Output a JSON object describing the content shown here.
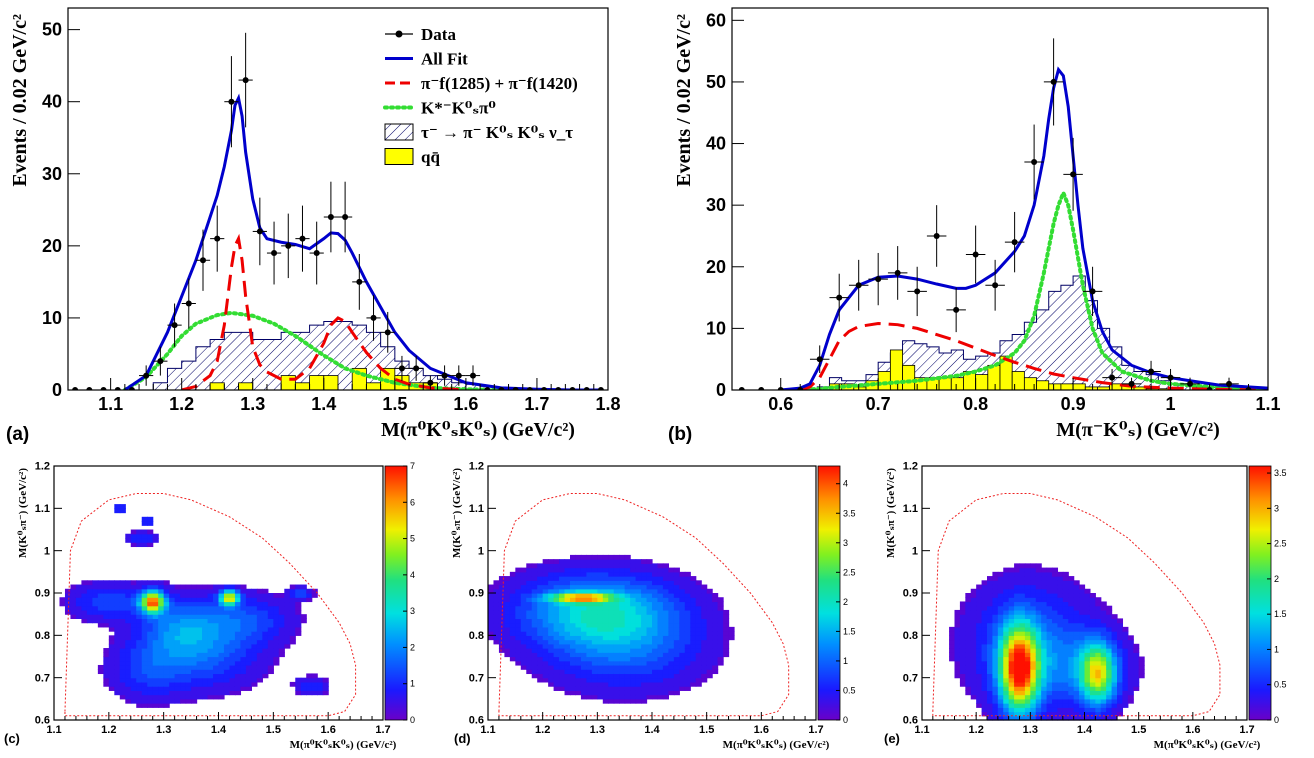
{
  "chart_data": [
    {
      "id": "a",
      "panel_label": "(a)",
      "type": "histogram-fit",
      "xlabel": "M(π⁰K⁰ₛK⁰ₛ) (GeV/c²)",
      "ylabel": "Events / 0.02 GeV/c²",
      "xlim": [
        1.04,
        1.8
      ],
      "ylim": [
        0,
        53
      ],
      "xticks": [
        1.1,
        1.2,
        1.3,
        1.4,
        1.5,
        1.6,
        1.7,
        1.8
      ],
      "yticks": [
        0,
        10,
        20,
        30,
        40,
        50
      ],
      "legend": {
        "placement": "top-right",
        "entries": [
          {
            "key": "data",
            "label": "Data"
          },
          {
            "key": "allfit",
            "label": "All Fit"
          },
          {
            "key": "sig",
            "label": "π⁻f(1285) + π⁻f(1420)"
          },
          {
            "key": "kstar",
            "label": "K*⁻K⁰ₛπ⁰"
          },
          {
            "key": "tau",
            "label": "τ⁻ → π⁻ K⁰ₛ K⁰ₛ ν_τ"
          },
          {
            "key": "qq",
            "label": "qq̄"
          }
        ]
      },
      "colors": {
        "data": "#000000",
        "allfit": "#0000cc",
        "sig": "#ee0000",
        "kstar": "#33dd33",
        "tau": "#000066",
        "qq": "#ffff00"
      },
      "data": {
        "x": [
          1.05,
          1.07,
          1.09,
          1.11,
          1.13,
          1.15,
          1.17,
          1.19,
          1.21,
          1.23,
          1.25,
          1.27,
          1.29,
          1.31,
          1.33,
          1.35,
          1.37,
          1.39,
          1.41,
          1.43,
          1.45,
          1.47,
          1.49,
          1.51,
          1.53,
          1.55,
          1.57,
          1.59,
          1.61,
          1.63,
          1.65,
          1.67,
          1.69,
          1.71,
          1.73,
          1.75,
          1.77,
          1.79
        ],
        "y": [
          0,
          0,
          0,
          0,
          0,
          2,
          4,
          9,
          12,
          18,
          21,
          40,
          43,
          22,
          19,
          20,
          21,
          19,
          24,
          24,
          15,
          10,
          8,
          3,
          3,
          1,
          2,
          2,
          2,
          0,
          0,
          0,
          0,
          0,
          0,
          0,
          0,
          0
        ]
      },
      "all_fit": {
        "x": [
          1.12,
          1.15,
          1.18,
          1.2,
          1.22,
          1.24,
          1.25,
          1.26,
          1.27,
          1.275,
          1.28,
          1.285,
          1.29,
          1.3,
          1.31,
          1.32,
          1.34,
          1.36,
          1.38,
          1.4,
          1.41,
          1.42,
          1.43,
          1.44,
          1.46,
          1.48,
          1.5,
          1.52,
          1.55,
          1.6,
          1.65,
          1.7,
          1.75,
          1.79
        ],
        "y": [
          0,
          2,
          8,
          13,
          18,
          24,
          27,
          31,
          36,
          39.5,
          40.5,
          38,
          33,
          26.5,
          22.5,
          21,
          20.5,
          20.2,
          19.6,
          21,
          21.8,
          21.7,
          20.8,
          19,
          15,
          11.5,
          8,
          5.5,
          3,
          1,
          0.3,
          0.1,
          0,
          0
        ]
      },
      "signal_fit": {
        "x": [
          1.2,
          1.22,
          1.24,
          1.25,
          1.26,
          1.27,
          1.275,
          1.28,
          1.285,
          1.29,
          1.3,
          1.31,
          1.32,
          1.34,
          1.36,
          1.38,
          1.4,
          1.41,
          1.42,
          1.43,
          1.44,
          1.46,
          1.48,
          1.5,
          1.52,
          1.55,
          1.6
        ],
        "y": [
          0,
          0.5,
          2,
          4,
          9,
          17,
          20,
          21,
          18,
          13,
          6,
          3.5,
          2.5,
          1.5,
          1.5,
          3,
          6.5,
          9,
          10,
          9.5,
          8,
          5.2,
          3,
          1.5,
          0.8,
          0.3,
          0
        ]
      },
      "kstar_fit": {
        "x": [
          1.12,
          1.15,
          1.18,
          1.2,
          1.22,
          1.25,
          1.27,
          1.3,
          1.33,
          1.36,
          1.4,
          1.43,
          1.46,
          1.5,
          1.55,
          1.6,
          1.65,
          1.7
        ],
        "y": [
          0,
          1.8,
          5,
          7.5,
          9.2,
          10.4,
          10.7,
          10.3,
          9.2,
          7.5,
          4.8,
          3,
          2,
          1,
          0.3,
          0.1,
          0,
          0
        ]
      },
      "tau_hist": {
        "edges_start": 1.04,
        "width": 0.02,
        "values": [
          0,
          0,
          0,
          0,
          0,
          0,
          1,
          3,
          4,
          6,
          7,
          8,
          8,
          7,
          7,
          8,
          8,
          9,
          9.5,
          9.5,
          9,
          8,
          6,
          4,
          3,
          2,
          1.5,
          1,
          0.8,
          0.5,
          0.3,
          0,
          0,
          0,
          0,
          0,
          0,
          0
        ]
      },
      "qq_hist": {
        "edges_start": 1.04,
        "width": 0.02,
        "values": [
          0,
          0,
          0,
          0,
          0,
          0,
          0,
          0,
          0,
          0,
          1,
          0,
          1,
          0,
          0,
          2,
          1,
          2,
          2,
          0,
          3,
          1,
          3,
          2,
          1,
          1,
          0,
          0,
          0,
          0,
          0,
          0,
          0,
          0,
          0,
          0,
          0,
          0
        ]
      }
    },
    {
      "id": "b",
      "panel_label": "(b)",
      "type": "histogram-fit",
      "xlabel": "M(π⁻K⁰ₛ) (GeV/c²)",
      "ylabel": "Events / 0.02 GeV/c²",
      "xlim": [
        0.55,
        1.1
      ],
      "ylim": [
        0,
        62
      ],
      "xticks": [
        0.6,
        0.7,
        0.8,
        0.9,
        1,
        1.1
      ],
      "yticks": [
        0,
        10,
        20,
        30,
        40,
        50,
        60
      ],
      "data": {
        "x": [
          0.56,
          0.58,
          0.6,
          0.62,
          0.64,
          0.66,
          0.68,
          0.7,
          0.72,
          0.74,
          0.76,
          0.78,
          0.8,
          0.82,
          0.84,
          0.86,
          0.88,
          0.9,
          0.92,
          0.94,
          0.96,
          0.98,
          1.0,
          1.02,
          1.04,
          1.06,
          1.08
        ],
        "y": [
          0,
          0,
          0,
          0,
          5,
          15,
          17,
          18,
          19,
          16,
          25,
          13,
          22,
          17,
          24,
          37,
          50,
          35,
          16,
          2,
          1,
          3,
          2,
          1,
          0,
          1,
          0
        ]
      },
      "all_fit": {
        "x": [
          0.6,
          0.62,
          0.63,
          0.64,
          0.65,
          0.66,
          0.68,
          0.7,
          0.72,
          0.74,
          0.76,
          0.78,
          0.79,
          0.8,
          0.82,
          0.84,
          0.85,
          0.86,
          0.87,
          0.875,
          0.88,
          0.885,
          0.89,
          0.895,
          0.9,
          0.905,
          0.91,
          0.92,
          0.93,
          0.94,
          0.96,
          0.98,
          1.0,
          1.02,
          1.05,
          1.1
        ],
        "y": [
          0,
          0.3,
          1,
          4,
          9,
          13,
          17,
          18.3,
          18.5,
          18,
          17.2,
          16.5,
          16.5,
          17,
          19,
          22.5,
          25,
          30,
          38,
          44,
          49,
          52,
          51,
          46,
          38,
          30,
          23,
          14.5,
          9.5,
          6.5,
          4,
          2.8,
          2,
          1.5,
          0.8,
          0.3
        ]
      },
      "signal_fit": {
        "x": [
          0.62,
          0.63,
          0.64,
          0.65,
          0.66,
          0.67,
          0.68,
          0.7,
          0.72,
          0.74,
          0.76,
          0.78,
          0.8,
          0.82,
          0.84,
          0.86,
          0.88,
          0.9,
          0.93,
          0.96,
          1.0,
          1.05,
          1.1
        ],
        "y": [
          0,
          0.5,
          2,
          5,
          8,
          9.5,
          10.3,
          10.8,
          10.6,
          10,
          9,
          8,
          6.8,
          5.6,
          4.5,
          3.5,
          2.6,
          2,
          1.2,
          0.6,
          0.3,
          0.1,
          0
        ]
      },
      "kstar_fit": {
        "x": [
          0.62,
          0.64,
          0.66,
          0.7,
          0.74,
          0.78,
          0.8,
          0.82,
          0.84,
          0.85,
          0.86,
          0.87,
          0.88,
          0.885,
          0.89,
          0.895,
          0.9,
          0.91,
          0.92,
          0.93,
          0.95,
          0.98,
          1.0,
          1.05,
          1.1
        ],
        "y": [
          0,
          0.2,
          0.5,
          1,
          1.5,
          2.3,
          3,
          4,
          6,
          8,
          12,
          19,
          27,
          30,
          32,
          30,
          26,
          17,
          10,
          6,
          3,
          1.5,
          1,
          0.4,
          0.1
        ]
      },
      "tau_hist": {
        "edges_start": 0.55,
        "width": 0.0125,
        "values": [
          0,
          0,
          0,
          0,
          0,
          0,
          0,
          0.5,
          2,
          1.5,
          1.5,
          2.5,
          4.5,
          6,
          8,
          7.5,
          7,
          6,
          6.5,
          5,
          5.5,
          6,
          8,
          9,
          11,
          13,
          16,
          17,
          18.5,
          14.5,
          10,
          7,
          4,
          3,
          2.5,
          1.5,
          1,
          1,
          0.5,
          0.4,
          0.3,
          0.2,
          0.1,
          0
        ]
      },
      "qq_hist": {
        "edges_start": 0.55,
        "width": 0.0125,
        "values": [
          0,
          0,
          0,
          0,
          0,
          0,
          0,
          0,
          1,
          1,
          0.5,
          1.5,
          3,
          6.5,
          4,
          2,
          2,
          2,
          2,
          3,
          2.5,
          4,
          5.5,
          3,
          2,
          1.5,
          1,
          1,
          1,
          0.5,
          0.5,
          1,
          1,
          0.5,
          0.2,
          0.2,
          0,
          0,
          0,
          0,
          0,
          0,
          0,
          0
        ]
      }
    },
    {
      "id": "c",
      "panel_label": "(c)",
      "type": "heatmap",
      "xlabel": "M(π⁰K⁰ₛK⁰ₛ) (GeV/c²)",
      "ylabel": "M(K⁰ₛπ⁻) (GeV/c²)",
      "xlim": [
        1.1,
        1.7
      ],
      "ylim": [
        0.6,
        1.2
      ],
      "xticks": [
        1.1,
        1.2,
        1.3,
        1.4,
        1.5,
        1.6,
        1.7
      ],
      "yticks": [
        0.6,
        0.7,
        0.8,
        0.9,
        1,
        1.1,
        1.2
      ],
      "zlim": [
        0,
        7
      ],
      "zticks": [
        0,
        1,
        2,
        3,
        4,
        5,
        6,
        7
      ],
      "blobs": [
        {
          "x": 1.28,
          "y": 0.88,
          "sx": 0.015,
          "sy": 0.018,
          "a": 6
        },
        {
          "x": 1.42,
          "y": 0.89,
          "sx": 0.012,
          "sy": 0.012,
          "a": 5
        },
        {
          "x": 1.33,
          "y": 0.82,
          "sx": 0.05,
          "sy": 0.05,
          "a": 1.5
        },
        {
          "x": 1.2,
          "y": 0.88,
          "sx": 0.05,
          "sy": 0.03,
          "a": 1.3
        },
        {
          "x": 1.38,
          "y": 0.76,
          "sx": 0.07,
          "sy": 0.06,
          "a": 1.4
        },
        {
          "x": 1.27,
          "y": 0.72,
          "sx": 0.05,
          "sy": 0.05,
          "a": 1.1
        },
        {
          "x": 1.45,
          "y": 0.84,
          "sx": 0.06,
          "sy": 0.04,
          "a": 1.2
        },
        {
          "x": 1.57,
          "y": 0.68,
          "sx": 0.02,
          "sy": 0.015,
          "a": 1.1
        },
        {
          "x": 1.22,
          "y": 1.1,
          "sx": 0.008,
          "sy": 0.008,
          "a": 1.2
        },
        {
          "x": 1.27,
          "y": 1.07,
          "sx": 0.008,
          "sy": 0.008,
          "a": 1.2
        },
        {
          "x": 1.26,
          "y": 1.03,
          "sx": 0.02,
          "sy": 0.01,
          "a": 1.2
        },
        {
          "x": 1.55,
          "y": 0.9,
          "sx": 0.015,
          "sy": 0.01,
          "a": 1.2
        }
      ]
    },
    {
      "id": "d",
      "panel_label": "(d)",
      "type": "heatmap",
      "xlabel": "M(π⁰K⁰ₛK⁰ₛ) (GeV/c²)",
      "ylabel": "M(K⁰ₛπ⁻) (GeV/c²)",
      "xlim": [
        1.1,
        1.7
      ],
      "ylim": [
        0.6,
        1.2
      ],
      "xticks": [
        1.1,
        1.2,
        1.3,
        1.4,
        1.5,
        1.6,
        1.7
      ],
      "yticks": [
        0.6,
        0.7,
        0.8,
        0.9,
        1,
        1.1,
        1.2
      ],
      "zlim": [
        0,
        4.3
      ],
      "zticks": [
        0,
        0.5,
        1,
        1.5,
        2,
        2.5,
        3,
        3.5,
        4
      ],
      "blobs": [
        {
          "x": 1.27,
          "y": 0.89,
          "sx": 0.04,
          "sy": 0.008,
          "a": 2.6
        },
        {
          "x": 1.3,
          "y": 0.86,
          "sx": 0.1,
          "sy": 0.06,
          "a": 1.7
        },
        {
          "x": 1.35,
          "y": 0.77,
          "sx": 0.1,
          "sy": 0.07,
          "a": 0.9
        }
      ]
    },
    {
      "id": "e",
      "panel_label": "(e)",
      "type": "heatmap",
      "xlabel": "M(π⁰K⁰ₛK⁰ₛ) (GeV/c²)",
      "ylabel": "M(K⁰ₛπ⁻) (GeV/c²)",
      "xlim": [
        1.1,
        1.7
      ],
      "ylim": [
        0.6,
        1.2
      ],
      "xticks": [
        1.1,
        1.2,
        1.3,
        1.4,
        1.5,
        1.6,
        1.7
      ],
      "yticks": [
        0.6,
        0.7,
        0.8,
        0.9,
        1,
        1.1,
        1.2
      ],
      "zlim": [
        0,
        3.6
      ],
      "zticks": [
        0,
        0.5,
        1,
        1.5,
        2,
        2.5,
        3,
        3.5
      ],
      "blobs": [
        {
          "x": 1.28,
          "y": 0.72,
          "sx": 0.025,
          "sy": 0.07,
          "a": 3.4
        },
        {
          "x": 1.425,
          "y": 0.71,
          "sx": 0.022,
          "sy": 0.05,
          "a": 2.2
        },
        {
          "x": 1.3,
          "y": 0.78,
          "sx": 0.08,
          "sy": 0.1,
          "a": 0.8
        },
        {
          "x": 1.4,
          "y": 0.72,
          "sx": 0.06,
          "sy": 0.06,
          "a": 0.6
        }
      ]
    }
  ]
}
